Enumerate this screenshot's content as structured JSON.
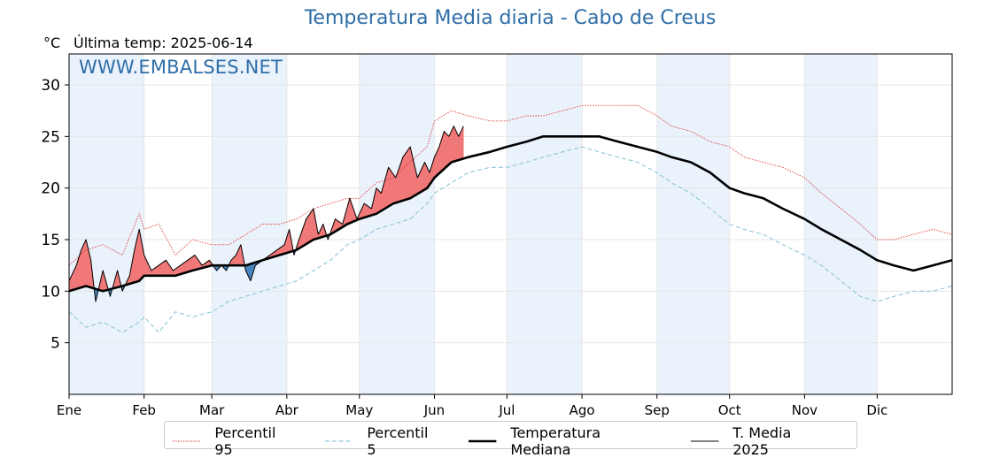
{
  "title": "Temperatura Media diaria - Cabo de Creus",
  "unit": "°C",
  "last_temp_prefix": "Última temp:",
  "last_temp_date": "2025-06-14",
  "watermark": "WWW.EMBALSES.NET",
  "colors": {
    "title": "#2f6ea8",
    "p95": "#e03b3b",
    "p5": "#8fc6d9",
    "median": "#000000",
    "media2025": "#000000",
    "above_fill": "#f07878",
    "below_fill": "#4a86c0",
    "month_band": "#eaf2fb"
  },
  "chart_data": {
    "type": "line",
    "title": "Temperatura Media diaria - Cabo de Creus",
    "xlabel": "",
    "ylabel": "°C",
    "ylim": [
      0,
      33
    ],
    "xlim": [
      1,
      366
    ],
    "grid": true,
    "legend_position": "bottom",
    "x_ticks": [
      {
        "label": "Ene",
        "day": 1
      },
      {
        "label": "Feb",
        "day": 32
      },
      {
        "label": "Mar",
        "day": 60
      },
      {
        "label": "Abr",
        "day": 91
      },
      {
        "label": "May",
        "day": 121
      },
      {
        "label": "Jun",
        "day": 152
      },
      {
        "label": "Jul",
        "day": 182
      },
      {
        "label": "Ago",
        "day": 213
      },
      {
        "label": "Sep",
        "day": 244
      },
      {
        "label": "Oct",
        "day": 274
      },
      {
        "label": "Nov",
        "day": 305
      },
      {
        "label": "Dic",
        "day": 335
      }
    ],
    "y_ticks": [
      5,
      10,
      15,
      20,
      25,
      30
    ],
    "shaded_month_bands": [
      [
        1,
        32
      ],
      [
        60,
        91
      ],
      [
        121,
        152
      ],
      [
        182,
        213
      ],
      [
        244,
        274
      ],
      [
        305,
        335
      ]
    ],
    "series": [
      {
        "name": "Percentil 95",
        "style": "dotted-red",
        "points": [
          [
            1,
            12.5
          ],
          [
            8,
            14
          ],
          [
            15,
            14.5
          ],
          [
            23,
            13.5
          ],
          [
            30,
            17.5
          ],
          [
            32,
            16
          ],
          [
            38,
            16.5
          ],
          [
            45,
            13.5
          ],
          [
            52,
            15
          ],
          [
            60,
            14.5
          ],
          [
            67,
            14.5
          ],
          [
            74,
            15.5
          ],
          [
            81,
            16.5
          ],
          [
            88,
            16.5
          ],
          [
            95,
            17
          ],
          [
            102,
            18
          ],
          [
            109,
            18.5
          ],
          [
            116,
            19
          ],
          [
            121,
            19
          ],
          [
            128,
            20.5
          ],
          [
            135,
            21
          ],
          [
            142,
            22.5
          ],
          [
            149,
            24
          ],
          [
            152,
            26.5
          ],
          [
            159,
            27.5
          ],
          [
            166,
            27
          ],
          [
            175,
            26.5
          ],
          [
            182,
            26.5
          ],
          [
            190,
            27
          ],
          [
            197,
            27
          ],
          [
            205,
            27.5
          ],
          [
            213,
            28
          ],
          [
            220,
            28
          ],
          [
            228,
            28
          ],
          [
            236,
            28
          ],
          [
            244,
            27
          ],
          [
            250,
            26
          ],
          [
            258,
            25.5
          ],
          [
            266,
            24.5
          ],
          [
            274,
            24
          ],
          [
            280,
            23
          ],
          [
            288,
            22.5
          ],
          [
            296,
            22
          ],
          [
            305,
            21
          ],
          [
            312,
            19.5
          ],
          [
            320,
            18
          ],
          [
            328,
            16.5
          ],
          [
            335,
            15
          ],
          [
            342,
            15
          ],
          [
            350,
            15.5
          ],
          [
            358,
            16
          ],
          [
            366,
            15.5
          ]
        ]
      },
      {
        "name": "Percentil 5",
        "style": "dashed-lightblue",
        "points": [
          [
            1,
            8
          ],
          [
            8,
            6.5
          ],
          [
            15,
            7
          ],
          [
            23,
            6
          ],
          [
            30,
            7
          ],
          [
            32,
            7.5
          ],
          [
            38,
            6
          ],
          [
            45,
            8
          ],
          [
            52,
            7.5
          ],
          [
            60,
            8
          ],
          [
            67,
            9
          ],
          [
            74,
            9.5
          ],
          [
            81,
            10
          ],
          [
            88,
            10.5
          ],
          [
            95,
            11
          ],
          [
            102,
            12
          ],
          [
            109,
            13
          ],
          [
            116,
            14.5
          ],
          [
            121,
            15
          ],
          [
            128,
            16
          ],
          [
            135,
            16.5
          ],
          [
            142,
            17
          ],
          [
            149,
            18.5
          ],
          [
            152,
            19.5
          ],
          [
            159,
            20.5
          ],
          [
            166,
            21.5
          ],
          [
            175,
            22
          ],
          [
            182,
            22
          ],
          [
            190,
            22.5
          ],
          [
            197,
            23
          ],
          [
            205,
            23.5
          ],
          [
            213,
            24
          ],
          [
            220,
            23.5
          ],
          [
            228,
            23
          ],
          [
            236,
            22.5
          ],
          [
            244,
            21.5
          ],
          [
            250,
            20.5
          ],
          [
            258,
            19.5
          ],
          [
            266,
            18
          ],
          [
            274,
            16.5
          ],
          [
            280,
            16
          ],
          [
            288,
            15.5
          ],
          [
            296,
            14.5
          ],
          [
            305,
            13.5
          ],
          [
            312,
            12.5
          ],
          [
            320,
            11
          ],
          [
            328,
            9.5
          ],
          [
            335,
            9
          ],
          [
            342,
            9.5
          ],
          [
            350,
            10
          ],
          [
            358,
            10
          ],
          [
            366,
            10.5
          ]
        ]
      },
      {
        "name": "Temperatura Mediana",
        "style": "thick-black",
        "points": [
          [
            1,
            10
          ],
          [
            8,
            10.5
          ],
          [
            15,
            10
          ],
          [
            23,
            10.5
          ],
          [
            30,
            11
          ],
          [
            32,
            11.5
          ],
          [
            38,
            11.5
          ],
          [
            45,
            11.5
          ],
          [
            52,
            12
          ],
          [
            60,
            12.5
          ],
          [
            67,
            12.5
          ],
          [
            74,
            12.5
          ],
          [
            81,
            13
          ],
          [
            88,
            13.5
          ],
          [
            95,
            14
          ],
          [
            102,
            15
          ],
          [
            109,
            15.5
          ],
          [
            116,
            16.5
          ],
          [
            121,
            17
          ],
          [
            128,
            17.5
          ],
          [
            135,
            18.5
          ],
          [
            142,
            19
          ],
          [
            149,
            20
          ],
          [
            152,
            21
          ],
          [
            159,
            22.5
          ],
          [
            166,
            23
          ],
          [
            175,
            23.5
          ],
          [
            182,
            24
          ],
          [
            190,
            24.5
          ],
          [
            197,
            25
          ],
          [
            205,
            25
          ],
          [
            213,
            25
          ],
          [
            220,
            25
          ],
          [
            228,
            24.5
          ],
          [
            236,
            24
          ],
          [
            244,
            23.5
          ],
          [
            250,
            23
          ],
          [
            258,
            22.5
          ],
          [
            266,
            21.5
          ],
          [
            274,
            20
          ],
          [
            280,
            19.5
          ],
          [
            288,
            19
          ],
          [
            296,
            18
          ],
          [
            305,
            17
          ],
          [
            312,
            16
          ],
          [
            320,
            15
          ],
          [
            328,
            14
          ],
          [
            335,
            13
          ],
          [
            342,
            12.5
          ],
          [
            350,
            12
          ],
          [
            358,
            12.5
          ],
          [
            366,
            13
          ]
        ]
      },
      {
        "name": "T. Media 2025",
        "style": "thin-black",
        "points": [
          [
            1,
            11
          ],
          [
            4,
            12.5
          ],
          [
            6,
            14
          ],
          [
            8,
            15
          ],
          [
            10,
            13
          ],
          [
            12,
            9
          ],
          [
            15,
            12
          ],
          [
            18,
            9.5
          ],
          [
            21,
            12
          ],
          [
            23,
            10
          ],
          [
            26,
            11.5
          ],
          [
            28,
            14
          ],
          [
            30,
            16
          ],
          [
            32,
            13.5
          ],
          [
            35,
            12
          ],
          [
            38,
            12.5
          ],
          [
            41,
            13
          ],
          [
            44,
            12
          ],
          [
            47,
            12.5
          ],
          [
            50,
            13
          ],
          [
            53,
            13.5
          ],
          [
            56,
            12.5
          ],
          [
            59,
            13
          ],
          [
            62,
            12
          ],
          [
            64,
            12.5
          ],
          [
            66,
            12
          ],
          [
            68,
            13
          ],
          [
            70,
            13.5
          ],
          [
            72,
            14.5
          ],
          [
            74,
            12
          ],
          [
            76,
            11
          ],
          [
            78,
            12.5
          ],
          [
            81,
            13
          ],
          [
            84,
            13.5
          ],
          [
            87,
            14
          ],
          [
            90,
            14.5
          ],
          [
            92,
            16
          ],
          [
            94,
            13.5
          ],
          [
            96,
            15
          ],
          [
            99,
            17
          ],
          [
            102,
            18
          ],
          [
            104,
            15.5
          ],
          [
            106,
            16.5
          ],
          [
            108,
            15
          ],
          [
            111,
            17
          ],
          [
            114,
            16.5
          ],
          [
            117,
            19
          ],
          [
            120,
            17
          ],
          [
            123,
            18.5
          ],
          [
            126,
            18
          ],
          [
            128,
            20
          ],
          [
            130,
            19.5
          ],
          [
            133,
            22
          ],
          [
            136,
            21
          ],
          [
            139,
            23
          ],
          [
            142,
            24
          ],
          [
            145,
            21
          ],
          [
            148,
            22.5
          ],
          [
            150,
            21.5
          ],
          [
            152,
            23
          ],
          [
            154,
            24
          ],
          [
            156,
            25.5
          ],
          [
            158,
            25
          ],
          [
            160,
            26
          ],
          [
            162,
            25
          ],
          [
            164,
            26
          ]
        ]
      }
    ]
  },
  "legend": {
    "items": [
      {
        "label": "Percentil 95"
      },
      {
        "label": "Percentil 5"
      },
      {
        "label": "Temperatura Mediana"
      },
      {
        "label": "T. Media 2025"
      }
    ]
  }
}
